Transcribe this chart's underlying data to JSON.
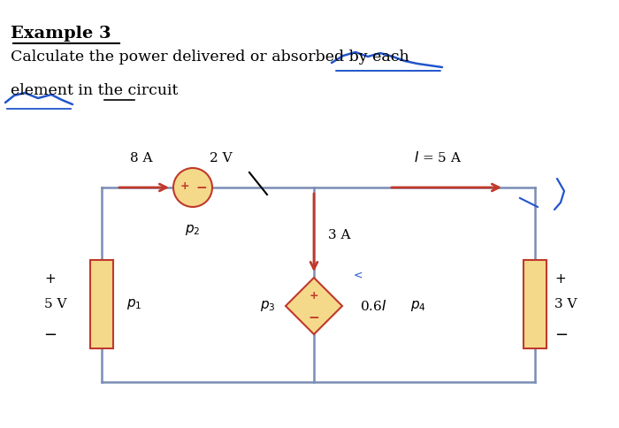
{
  "bg_color": "#ffffff",
  "circuit_color": "#7a8db5",
  "element_fill": "#f5d98b",
  "element_edge": "#c0392b",
  "arrow_color": "#c0392b",
  "text_color": "#000000",
  "title": "Example 3",
  "line2": "Calculate the power delivered or absorbed by each",
  "line3": "element in the circuit",
  "label_8A": "8 A",
  "label_2V": "2 V",
  "label_p2": "$p_2$",
  "label_p1": "$p_1$",
  "label_p3": "$p_3$",
  "label_p4": "$p_4$",
  "label_3A": "3 A",
  "label_06I": "0.6$I$",
  "label_I5A": "$I$ = 5 A",
  "label_5V": "5 V",
  "label_3V": "3 V"
}
